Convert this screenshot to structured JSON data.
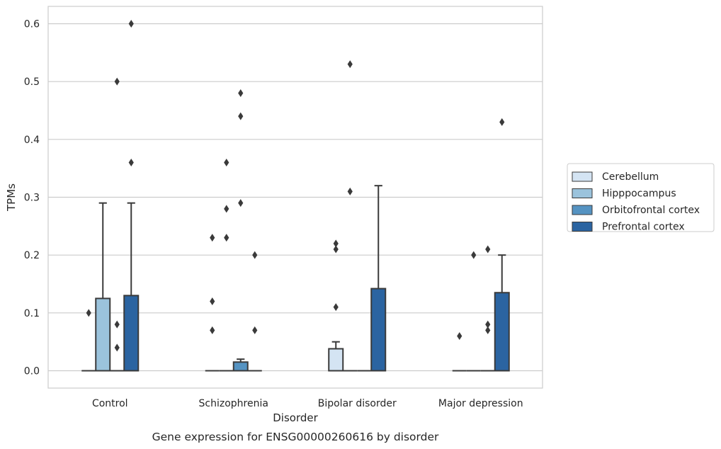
{
  "chart_data": {
    "type": "box",
    "caption": "Gene expression for ENSG00000260616 by disorder",
    "xlabel": "Disorder",
    "ylabel": "TPMs",
    "ylim": [
      -0.03,
      0.63
    ],
    "yticks": [
      0.0,
      0.1,
      0.2,
      0.3,
      0.4,
      0.5,
      0.6
    ],
    "ytick_labels": [
      "0.0",
      "0.1",
      "0.2",
      "0.3",
      "0.4",
      "0.5",
      "0.6"
    ],
    "grid": "horizontal",
    "legend_position": "right",
    "categories": [
      "Control",
      "Schizophrenia",
      "Bipolar disorder",
      "Major depression"
    ],
    "series": [
      {
        "name": "Cerebellum",
        "color": "#d4e4f3",
        "boxes": [
          {
            "q1": 0,
            "median": 0,
            "q3": 0,
            "whisker_low": 0,
            "whisker_high": 0,
            "outliers": [
              0.1
            ]
          },
          {
            "q1": 0,
            "median": 0,
            "q3": 0,
            "whisker_low": 0,
            "whisker_high": 0,
            "outliers": [
              0.07,
              0.12,
              0.23
            ]
          },
          {
            "q1": 0,
            "median": 0,
            "q3": 0.038,
            "whisker_low": 0,
            "whisker_high": 0.05,
            "outliers": [
              0.11,
              0.21,
              0.22
            ]
          },
          {
            "q1": 0,
            "median": 0,
            "q3": 0,
            "whisker_low": 0,
            "whisker_high": 0,
            "outliers": [
              0.06
            ]
          }
        ]
      },
      {
        "name": "Hipppocampus",
        "color": "#9bc3dc",
        "boxes": [
          {
            "q1": 0,
            "median": 0,
            "q3": 0.125,
            "whisker_low": 0,
            "whisker_high": 0.29,
            "outliers": []
          },
          {
            "q1": 0,
            "median": 0,
            "q3": 0,
            "whisker_low": 0,
            "whisker_high": 0,
            "outliers": [
              0.23,
              0.28,
              0.36
            ]
          },
          {
            "q1": 0,
            "median": 0,
            "q3": 0,
            "whisker_low": 0,
            "whisker_high": 0,
            "outliers": [
              0.31,
              0.53
            ]
          },
          {
            "q1": 0,
            "median": 0,
            "q3": 0,
            "whisker_low": 0,
            "whisker_high": 0,
            "outliers": [
              0.2
            ]
          }
        ]
      },
      {
        "name": "Orbitofrontal cortex",
        "color": "#5593c2",
        "boxes": [
          {
            "q1": 0,
            "median": 0,
            "q3": 0,
            "whisker_low": 0,
            "whisker_high": 0,
            "outliers": [
              0.04,
              0.08,
              0.5
            ]
          },
          {
            "q1": 0,
            "median": 0,
            "q3": 0.015,
            "whisker_low": 0,
            "whisker_high": 0.02,
            "outliers": [
              0.29,
              0.44,
              0.48
            ]
          },
          {
            "q1": 0,
            "median": 0,
            "q3": 0,
            "whisker_low": 0,
            "whisker_high": 0,
            "outliers": []
          },
          {
            "q1": 0,
            "median": 0,
            "q3": 0,
            "whisker_low": 0,
            "whisker_high": 0,
            "outliers": [
              0.07,
              0.08,
              0.21
            ]
          }
        ]
      },
      {
        "name": "Prefrontal cortex",
        "color": "#2b64a1",
        "boxes": [
          {
            "q1": 0,
            "median": 0,
            "q3": 0.13,
            "whisker_low": 0,
            "whisker_high": 0.29,
            "outliers": [
              0.36,
              0.6
            ]
          },
          {
            "q1": 0,
            "median": 0,
            "q3": 0,
            "whisker_low": 0,
            "whisker_high": 0,
            "outliers": [
              0.07,
              0.2
            ]
          },
          {
            "q1": 0,
            "median": 0,
            "q3": 0.142,
            "whisker_low": 0,
            "whisker_high": 0.32,
            "outliers": []
          },
          {
            "q1": 0,
            "median": 0,
            "q3": 0.135,
            "whisker_low": 0,
            "whisker_high": 0.2,
            "outliers": [
              0.43
            ]
          }
        ]
      }
    ]
  }
}
